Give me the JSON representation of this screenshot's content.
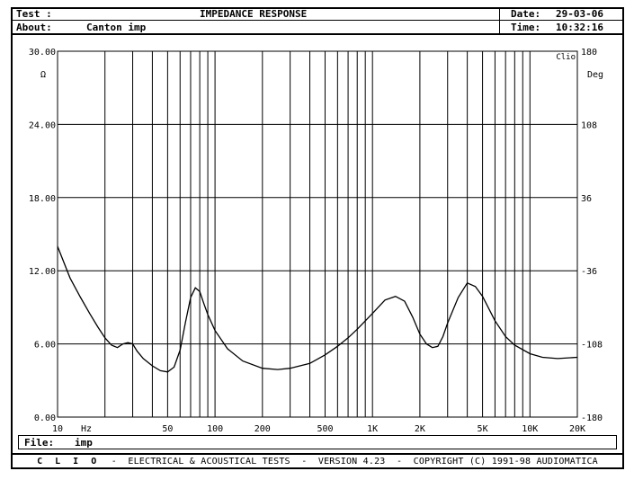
{
  "header": {
    "test_label": "Test :",
    "title": "IMPEDANCE RESPONSE",
    "about_label": "About:",
    "about_value": "Canton imp",
    "date_label": "Date:",
    "date_value": "29-03-06",
    "time_label": "Time:",
    "time_value": "10:32:16"
  },
  "chart_data": {
    "type": "line",
    "title": "IMPEDANCE RESPONSE",
    "badge": "Clio",
    "x_unit": "Hz",
    "xscale": "log",
    "xlim": [
      10,
      20000
    ],
    "x_tick_labels": [
      {
        "v": 10,
        "t": "10"
      },
      {
        "v": 50,
        "t": "50"
      },
      {
        "v": 100,
        "t": "100"
      },
      {
        "v": 200,
        "t": "200"
      },
      {
        "v": 500,
        "t": "500"
      },
      {
        "v": 1000,
        "t": "1K"
      },
      {
        "v": 2000,
        "t": "2K"
      },
      {
        "v": 5000,
        "t": "5K"
      },
      {
        "v": 10000,
        "t": "10K"
      },
      {
        "v": 20000,
        "t": "20K"
      }
    ],
    "y_left_unit": "Ω",
    "ylim_left": [
      0,
      30
    ],
    "y_left_ticks": [
      "0.00",
      "6.00",
      "12.00",
      "18.00",
      "24.00",
      "30.00"
    ],
    "y_right_unit": "Deg",
    "ylim_right": [
      -180,
      180
    ],
    "y_right_ticks": [
      "-180",
      "-108",
      "-36",
      "36",
      "108",
      "180"
    ],
    "grid": true,
    "series": [
      {
        "x": [
          10,
          12,
          14,
          16,
          18,
          20,
          22,
          24,
          26,
          28,
          30,
          32,
          35,
          40,
          45,
          50,
          55,
          60,
          65,
          70,
          75,
          80,
          85,
          90,
          100,
          120,
          150,
          200,
          250,
          300,
          400,
          500,
          600,
          700,
          800,
          1000,
          1200,
          1400,
          1600,
          1800,
          2000,
          2200,
          2400,
          2600,
          2800,
          3000,
          3500,
          4000,
          4500,
          5000,
          6000,
          7000,
          8000,
          10000,
          12000,
          15000,
          20000
        ],
        "values": [
          14.0,
          11.4,
          9.8,
          8.5,
          7.4,
          6.5,
          5.9,
          5.7,
          6.0,
          6.1,
          6.0,
          5.4,
          4.8,
          4.2,
          3.8,
          3.7,
          4.1,
          5.5,
          7.8,
          9.8,
          10.6,
          10.3,
          9.3,
          8.4,
          7.1,
          5.6,
          4.6,
          4.0,
          3.9,
          4.0,
          4.4,
          5.1,
          5.8,
          6.5,
          7.2,
          8.5,
          9.6,
          9.9,
          9.5,
          8.2,
          6.8,
          6.0,
          5.7,
          5.8,
          6.6,
          7.7,
          9.8,
          11.0,
          10.7,
          9.9,
          7.9,
          6.6,
          5.9,
          5.2,
          4.9,
          4.8,
          4.9
        ]
      }
    ]
  },
  "file": {
    "label": "File:",
    "name": "imp"
  },
  "footer": {
    "clio": "C L I O",
    "text": "-  ELECTRICAL & ACOUSTICAL TESTS  -  VERSION 4.23  -  COPYRIGHT (C) 1991-98 AUDIOMATICA"
  }
}
